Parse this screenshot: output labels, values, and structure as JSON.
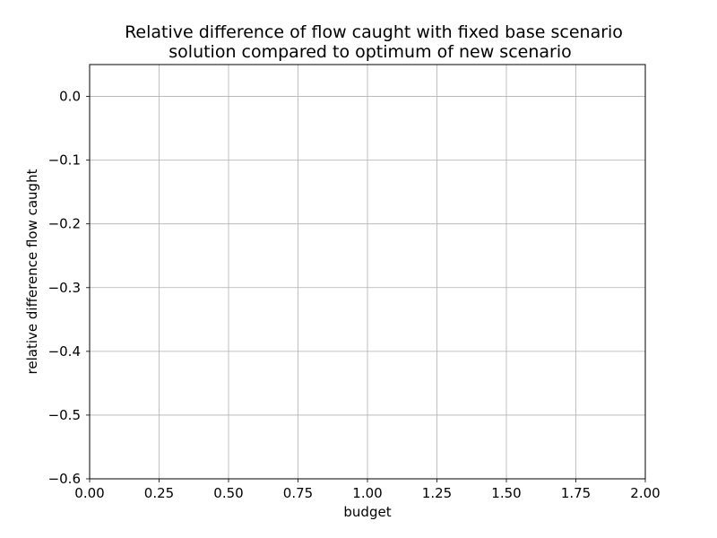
{
  "chart_data": {
    "type": "line",
    "title_lines": [
      "Relative difference of flow caught with fixed base scenario",
      "solution compared to optimum of new scenario"
    ],
    "xlabel": "budget",
    "ylabel": "relative difference flow caught",
    "xlim": [
      0.0,
      2.0
    ],
    "ylim": [
      -0.6,
      0.05
    ],
    "x_ticks": [
      0.0,
      0.25,
      0.5,
      0.75,
      1.0,
      1.25,
      1.5,
      1.75,
      2.0
    ],
    "x_tick_labels": [
      "0.00",
      "0.25",
      "0.50",
      "0.75",
      "1.00",
      "1.25",
      "1.50",
      "1.75",
      "2.00"
    ],
    "y_ticks": [
      0.0,
      -0.1,
      -0.2,
      -0.3,
      -0.4,
      -0.5,
      -0.6
    ],
    "y_tick_labels": [
      "0.0",
      "−0.1",
      "−0.2",
      "−0.3",
      "−0.4",
      "−0.5",
      "−0.6"
    ],
    "grid": true,
    "series": []
  }
}
